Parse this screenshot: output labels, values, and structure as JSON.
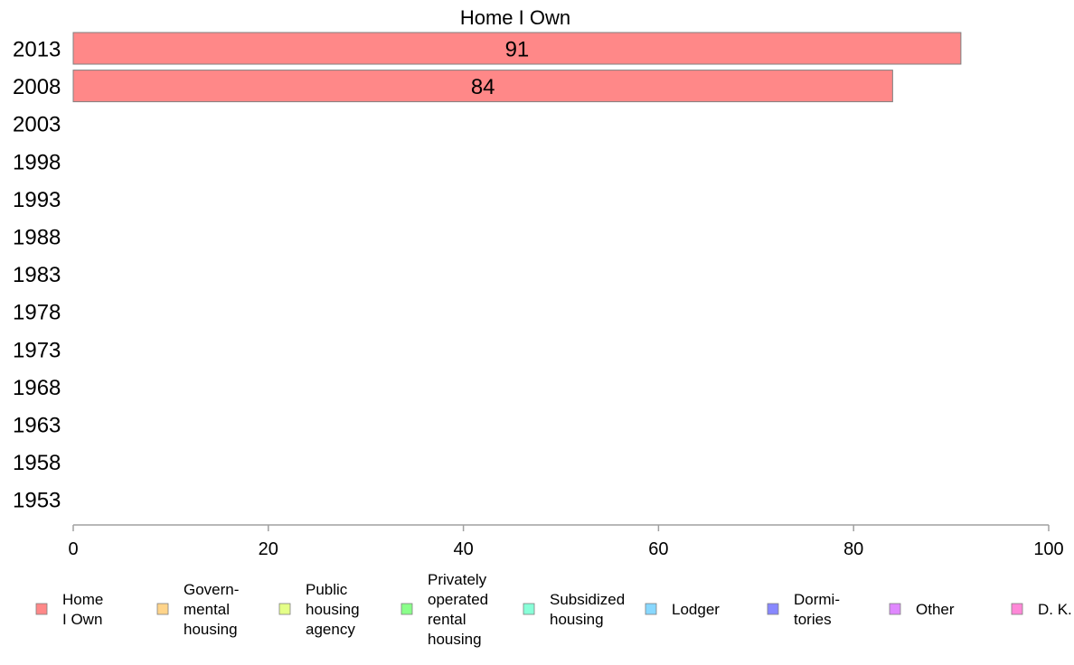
{
  "chart_data": {
    "type": "bar",
    "orientation": "horizontal",
    "title": "Home I Own",
    "categories": [
      "2013",
      "2008",
      "2003",
      "1998",
      "1993",
      "1988",
      "1983",
      "1978",
      "1973",
      "1968",
      "1963",
      "1958",
      "1953"
    ],
    "series": [
      {
        "name": "Home I Own",
        "color": "#ff8888",
        "values": [
          91,
          84,
          null,
          null,
          null,
          null,
          null,
          null,
          null,
          null,
          null,
          null,
          null
        ],
        "data_labels": [
          "91",
          "84",
          "",
          "",
          "",
          "",
          "",
          "",
          "",
          "",
          "",
          "",
          ""
        ]
      }
    ],
    "xlim": [
      0,
      100
    ],
    "x_ticks": [
      "0",
      "20",
      "40",
      "60",
      "80",
      "100"
    ],
    "grid": false,
    "legend_position": "bottom",
    "legend": [
      {
        "lines": [
          "Home",
          "I Own"
        ],
        "color": "#ff8888"
      },
      {
        "lines": [
          "Govern-",
          "mental",
          " housing"
        ],
        "color": "#ffd48a"
      },
      {
        "lines": [
          "Public",
          "housing",
          "agency"
        ],
        "color": "#e4ff88"
      },
      {
        "lines": [
          "Privately",
          "operated",
          "rental",
          "housing"
        ],
        "color": "#8aff8a"
      },
      {
        "lines": [
          "Subsidized",
          " housing"
        ],
        "color": "#88ffd8"
      },
      {
        "lines": [
          "Lodger"
        ],
        "color": "#88d8ff"
      },
      {
        "lines": [
          "Dormi-",
          "tories"
        ],
        "color": "#8888ff"
      },
      {
        "lines": [
          "Other"
        ],
        "color": "#e088ff"
      },
      {
        "lines": [
          "D. K."
        ],
        "color": "#ff88d8"
      }
    ]
  }
}
